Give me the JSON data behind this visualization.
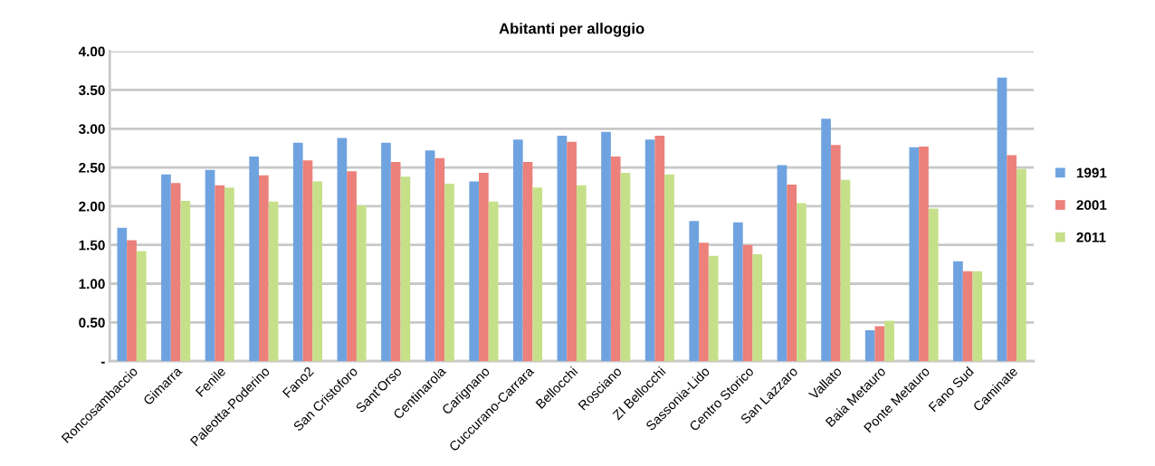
{
  "chart_data": {
    "type": "bar",
    "title": "Abitanti per alloggio",
    "categories": [
      "Roncosambaccio",
      "Gimarra",
      "Fenile",
      "Paleotta-Poderino",
      "Fano2",
      "San Cristoforo",
      "Sant'Orso",
      "Centinarola",
      "Carignano",
      "Cuccurano-Carrara",
      "Bellocchi",
      "Rosciano",
      "ZI Bellocchi",
      "Sassonia-Lido",
      "Centro Storico",
      "San Lazzaro",
      "Vallato",
      "Baia Metauro",
      "Ponte Metauro",
      "Fano Sud",
      "Caminate"
    ],
    "series": [
      {
        "name": "1991",
        "color": "#6fa3e0",
        "values": [
          1.72,
          2.41,
          2.47,
          2.64,
          2.82,
          2.88,
          2.82,
          2.72,
          2.32,
          2.86,
          2.91,
          2.96,
          2.86,
          1.81,
          1.79,
          2.53,
          3.13,
          0.4,
          2.76,
          1.29,
          3.66
        ]
      },
      {
        "name": "2001",
        "color": "#ec807a",
        "values": [
          1.56,
          2.3,
          2.27,
          2.4,
          2.59,
          2.45,
          2.57,
          2.62,
          2.43,
          2.57,
          2.83,
          2.64,
          2.91,
          1.53,
          1.5,
          2.28,
          2.79,
          0.45,
          2.77,
          1.16,
          2.66
        ]
      },
      {
        "name": "2011",
        "color": "#c6e08a",
        "values": [
          1.42,
          2.07,
          2.24,
          2.06,
          2.32,
          2.01,
          2.38,
          2.29,
          2.06,
          2.24,
          2.27,
          2.43,
          2.41,
          1.36,
          1.38,
          2.04,
          2.34,
          0.52,
          1.97,
          1.16,
          2.48
        ]
      }
    ],
    "ylim": [
      0,
      4
    ],
    "yticks": [
      {
        "value": 0,
        "label": "-"
      },
      {
        "value": 0.5,
        "label": "0.50"
      },
      {
        "value": 1,
        "label": "1.00"
      },
      {
        "value": 1.5,
        "label": "1.50"
      },
      {
        "value": 2,
        "label": "2.00"
      },
      {
        "value": 2.5,
        "label": "2.50"
      },
      {
        "value": 3,
        "label": "3.00"
      },
      {
        "value": 3.5,
        "label": "3.50"
      },
      {
        "value": 4,
        "label": "4.00"
      }
    ],
    "grid": "y",
    "legend": "right"
  }
}
